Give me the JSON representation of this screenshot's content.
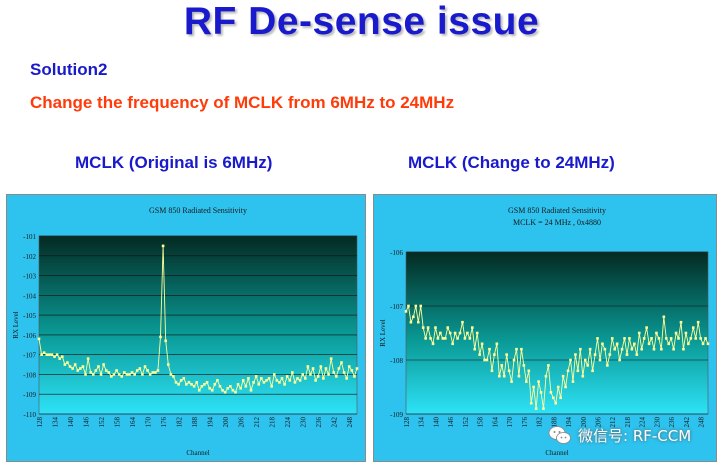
{
  "slide": {
    "title": "RF De-sense issue",
    "subtitle": "Solution2",
    "description": "Change the frequency of MCLK from 6MHz to 24MHz",
    "chart_left_caption": "MCLK (Original is 6MHz)",
    "chart_right_caption": "MCLK (Change to 24MHz)",
    "watermark": "微信号: RF-CCM"
  },
  "colors": {
    "title": "#1a1acd",
    "highlight": "#ff3b0a",
    "panel_bg": "#2ec2ee",
    "line": "#ffff99"
  },
  "chart_data": [
    {
      "type": "line",
      "title": "GSM 850 Radiated Sensitivity",
      "subtitle": "",
      "xlabel": "Channel",
      "ylabel": "RX Level",
      "ylim": [
        -110,
        -101
      ],
      "yticks": [
        -101,
        -102,
        -103,
        -104,
        -105,
        -106,
        -107,
        -108,
        -109,
        -110
      ],
      "xticks": [
        128,
        134,
        140,
        146,
        152,
        158,
        164,
        170,
        176,
        182,
        188,
        194,
        200,
        206,
        212,
        218,
        224,
        230,
        236,
        242,
        248
      ],
      "xlim": [
        128,
        251
      ],
      "grid": true,
      "series": [
        {
          "x": [
            128,
            129,
            130,
            131,
            132,
            133,
            134,
            135,
            136,
            137,
            138,
            139,
            140,
            141,
            142,
            143,
            144,
            145,
            146,
            147,
            148,
            149,
            150,
            151,
            152,
            153,
            154,
            155,
            156,
            157,
            158,
            159,
            160,
            161,
            162,
            163,
            164,
            165,
            166,
            167,
            168,
            169,
            170,
            171,
            172,
            173,
            174,
            175,
            176,
            177,
            178,
            179,
            180,
            181,
            182,
            183,
            184,
            185,
            186,
            187,
            188,
            189,
            190,
            191,
            192,
            193,
            194,
            195,
            196,
            197,
            198,
            199,
            200,
            201,
            202,
            203,
            204,
            205,
            206,
            207,
            208,
            209,
            210,
            211,
            212,
            213,
            214,
            215,
            216,
            217,
            218,
            219,
            220,
            221,
            222,
            223,
            224,
            225,
            226,
            227,
            228,
            229,
            230,
            231,
            232,
            233,
            234,
            235,
            236,
            237,
            238,
            239,
            240,
            241,
            242,
            243,
            244,
            245,
            246,
            247,
            248,
            249,
            250,
            251
          ],
          "y": [
            -106.2,
            -107,
            -106.9,
            -107,
            -107,
            -107,
            -107.1,
            -107,
            -107.2,
            -107.1,
            -107.5,
            -107.4,
            -107.6,
            -107.7,
            -107.5,
            -107.8,
            -107.7,
            -107.6,
            -108,
            -107.2,
            -107.9,
            -108,
            -107.8,
            -107.6,
            -108,
            -107.5,
            -107.8,
            -107.9,
            -108.1,
            -108,
            -107.8,
            -108,
            -108.1,
            -107.9,
            -108,
            -108,
            -107.9,
            -108,
            -107.8,
            -107.7,
            -108,
            -107.6,
            -107.8,
            -108,
            -107.9,
            -107.9,
            -107.8,
            -106.1,
            -101.5,
            -106.3,
            -107.5,
            -108,
            -108.1,
            -108.4,
            -108.5,
            -108.3,
            -108.2,
            -108.5,
            -108.4,
            -108.5,
            -108.6,
            -108.4,
            -108.8,
            -108.6,
            -108.5,
            -108.4,
            -108.7,
            -108.8,
            -108.5,
            -108.3,
            -108.6,
            -108.8,
            -108.9,
            -108.7,
            -108.6,
            -108.8,
            -108.9,
            -108.5,
            -108.7,
            -108.3,
            -108.6,
            -108.2,
            -108.8,
            -108.4,
            -108.1,
            -108.5,
            -108.2,
            -108.4,
            -108.3,
            -108.2,
            -108.6,
            -108,
            -108.3,
            -108.4,
            -108.2,
            -108.5,
            -108.1,
            -108.3,
            -107.9,
            -108.4,
            -108.2,
            -108.3,
            -108,
            -108.2,
            -107.6,
            -108,
            -107.7,
            -108.3,
            -108.1,
            -107.6,
            -108.2,
            -107.7,
            -108,
            -107.2,
            -107.9,
            -108.1,
            -107.7,
            -107.4,
            -107.9,
            -108.2,
            -107.6,
            -107.8,
            -108.1,
            -107.7
          ]
        }
      ]
    },
    {
      "type": "line",
      "title": "GSM 850 Radiated Sensitivity",
      "subtitle": "MCLK = 24 MHz , 0x4880",
      "xlabel": "Channel",
      "ylabel": "RX Level",
      "ylim": [
        -109,
        -106
      ],
      "yticks": [
        -106,
        -107,
        -108,
        -109
      ],
      "xticks": [
        128,
        134,
        140,
        146,
        152,
        158,
        164,
        170,
        176,
        182,
        188,
        194,
        200,
        206,
        212,
        218,
        224,
        230,
        236,
        242,
        248
      ],
      "xlim": [
        128,
        251
      ],
      "grid": true,
      "series": [
        {
          "x": [
            128,
            129,
            130,
            131,
            132,
            133,
            134,
            135,
            136,
            137,
            138,
            139,
            140,
            141,
            142,
            143,
            144,
            145,
            146,
            147,
            148,
            149,
            150,
            151,
            152,
            153,
            154,
            155,
            156,
            157,
            158,
            159,
            160,
            161,
            162,
            163,
            164,
            165,
            166,
            167,
            168,
            169,
            170,
            171,
            172,
            173,
            174,
            175,
            176,
            177,
            178,
            179,
            180,
            181,
            182,
            183,
            184,
            185,
            186,
            187,
            188,
            189,
            190,
            191,
            192,
            193,
            194,
            195,
            196,
            197,
            198,
            199,
            200,
            201,
            202,
            203,
            204,
            205,
            206,
            207,
            208,
            209,
            210,
            211,
            212,
            213,
            214,
            215,
            216,
            217,
            218,
            219,
            220,
            221,
            222,
            223,
            224,
            225,
            226,
            227,
            228,
            229,
            230,
            231,
            232,
            233,
            234,
            235,
            236,
            237,
            238,
            239,
            240,
            241,
            242,
            243,
            244,
            245,
            246,
            247,
            248,
            249,
            250,
            251
          ],
          "y": [
            -107.1,
            -107,
            -107.3,
            -107.2,
            -107,
            -107.3,
            -107,
            -107.4,
            -107.6,
            -107.4,
            -107.6,
            -107.7,
            -107.4,
            -107.6,
            -107.5,
            -107.6,
            -107.6,
            -107.4,
            -107.5,
            -107.7,
            -107.5,
            -107.6,
            -107.5,
            -107.3,
            -107.6,
            -107.5,
            -107.6,
            -107.4,
            -107.8,
            -107.5,
            -107.9,
            -107.7,
            -108,
            -108,
            -107.8,
            -108.2,
            -107.9,
            -107.7,
            -108.3,
            -108.1,
            -108.3,
            -107.9,
            -108.2,
            -108.4,
            -108,
            -107.8,
            -108.3,
            -107.8,
            -108.1,
            -108.4,
            -108.2,
            -108.8,
            -108.5,
            -108.9,
            -108.4,
            -108.6,
            -108.9,
            -108.3,
            -108.1,
            -108.6,
            -108.7,
            -108.8,
            -108.5,
            -108.7,
            -108.3,
            -108.5,
            -108.2,
            -108,
            -108.4,
            -107.9,
            -108.2,
            -107.8,
            -108.3,
            -108,
            -108.1,
            -107.8,
            -108.2,
            -107.9,
            -107.6,
            -108,
            -107.7,
            -107.8,
            -108.1,
            -107.9,
            -107.6,
            -107.8,
            -107.7,
            -108,
            -107.8,
            -107.6,
            -107.9,
            -107.6,
            -107.8,
            -107.7,
            -107.9,
            -107.5,
            -107.8,
            -107.6,
            -107.4,
            -107.7,
            -107.6,
            -107.8,
            -107.5,
            -107.6,
            -107.8,
            -107.2,
            -107.6,
            -107.7,
            -107.6,
            -107.8,
            -107.5,
            -107.6,
            -107.3,
            -107.8,
            -107.5,
            -107.7,
            -107.6,
            -107.4,
            -107.6,
            -107.3,
            -107.6,
            -107.7,
            -107.6,
            -107.7
          ]
        }
      ]
    }
  ]
}
